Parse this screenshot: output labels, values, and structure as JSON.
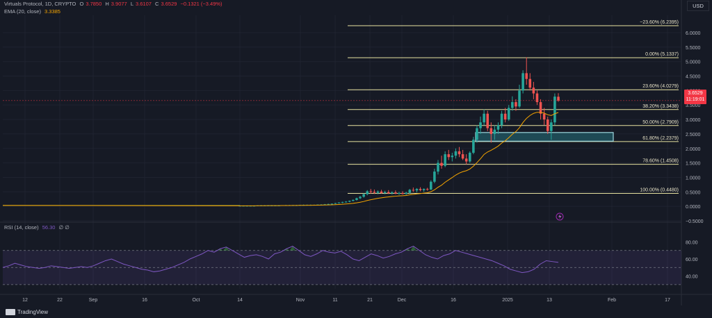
{
  "header": {
    "symbol": "Virtuals Protocol, 1D, CRYPTO",
    "o_label": "O",
    "o_val": "3.7850",
    "h_label": "H",
    "h_val": "3.9077",
    "l_label": "L",
    "l_val": "3.6107",
    "c_label": "C",
    "c_val": "3.6529",
    "change": "−0.1321 (−3.49%)",
    "ema_label": "EMA (20, close)",
    "ema_val": "3.3385",
    "rsi_label": "RSI (14, close)",
    "rsi_val": "56.30",
    "rsi_extra": "∅ ∅"
  },
  "currency": "USD",
  "price_tag": {
    "price": "3.6529",
    "countdown": "11:19:01"
  },
  "brand": "TradingView",
  "colors": {
    "up": "#26a69a",
    "down": "#ef5350",
    "ema": "#f7a600",
    "fib": "#e8e3a0",
    "rsi": "#7e57c2",
    "zone": "#9fd8e0",
    "grid": "#1f2330"
  },
  "chart_data": [
    {
      "type": "candlestick",
      "price_axis": [
        "6.0000",
        "5.5000",
        "5.0000",
        "4.5000",
        "4.0000",
        "3.5000",
        "3.0000",
        "2.5000",
        "2.0000",
        "1.5000",
        "1.0000",
        "0.5000",
        "0.0000",
        "−0.5000"
      ],
      "ylim": [
        -0.5,
        6.6
      ],
      "time_axis": [
        "12",
        "22",
        "Sep",
        "16",
        "Oct",
        "14",
        "Nov",
        "11",
        "21",
        "Dec",
        "16",
        "2025",
        "13",
        "Feb",
        "17"
      ],
      "fib_levels": [
        {
          "label": "−23.60% (6.2395)",
          "value": 6.2395
        },
        {
          "label": "0.00% (5.1337)",
          "value": 5.1337
        },
        {
          "label": "23.60% (4.0279)",
          "value": 4.0279
        },
        {
          "label": "38.20% (3.3438)",
          "value": 3.3438
        },
        {
          "label": "50.00% (2.7909)",
          "value": 2.7909
        },
        {
          "label": "61.80% (2.2379)",
          "value": 2.2379
        },
        {
          "label": "78.60% (1.4508)",
          "value": 1.4508
        },
        {
          "label": "100.00% (0.4480)",
          "value": 0.448
        }
      ],
      "zone": {
        "top": 2.55,
        "bottom": 2.25
      },
      "candles": [
        [
          0.02,
          0.03,
          0.01,
          0.02
        ],
        [
          0.02,
          0.03,
          0.01,
          0.02
        ],
        [
          0.02,
          0.03,
          0.01,
          0.02
        ],
        [
          0.02,
          0.03,
          0.01,
          0.02
        ],
        [
          0.02,
          0.03,
          0.01,
          0.02
        ],
        [
          0.02,
          0.03,
          0.01,
          0.03
        ],
        [
          0.03,
          0.04,
          0.02,
          0.03
        ],
        [
          0.03,
          0.04,
          0.02,
          0.03
        ],
        [
          0.03,
          0.04,
          0.02,
          0.03
        ],
        [
          0.03,
          0.04,
          0.02,
          0.03
        ],
        [
          0.03,
          0.04,
          0.02,
          0.03
        ],
        [
          0.03,
          0.04,
          0.02,
          0.03
        ],
        [
          0.03,
          0.04,
          0.02,
          0.04
        ],
        [
          0.04,
          0.05,
          0.03,
          0.04
        ],
        [
          0.04,
          0.05,
          0.03,
          0.04
        ],
        [
          0.04,
          0.05,
          0.03,
          0.04
        ],
        [
          0.04,
          0.05,
          0.03,
          0.04
        ],
        [
          0.04,
          0.05,
          0.03,
          0.05
        ],
        [
          0.05,
          0.06,
          0.04,
          0.05
        ],
        [
          0.05,
          0.06,
          0.04,
          0.05
        ],
        [
          0.05,
          0.06,
          0.04,
          0.05
        ],
        [
          0.05,
          0.06,
          0.04,
          0.05
        ],
        [
          0.05,
          0.06,
          0.04,
          0.06
        ],
        [
          0.06,
          0.07,
          0.05,
          0.06
        ],
        [
          0.06,
          0.08,
          0.05,
          0.07
        ],
        [
          0.07,
          0.09,
          0.06,
          0.08
        ],
        [
          0.08,
          0.1,
          0.07,
          0.09
        ],
        [
          0.09,
          0.12,
          0.08,
          0.11
        ],
        [
          0.11,
          0.14,
          0.1,
          0.13
        ],
        [
          0.13,
          0.16,
          0.11,
          0.15
        ],
        [
          0.15,
          0.18,
          0.13,
          0.16
        ],
        [
          0.16,
          0.2,
          0.14,
          0.19
        ],
        [
          0.19,
          0.24,
          0.17,
          0.22
        ],
        [
          0.22,
          0.3,
          0.2,
          0.28
        ],
        [
          0.28,
          0.36,
          0.25,
          0.33
        ],
        [
          0.33,
          0.45,
          0.3,
          0.42
        ],
        [
          0.42,
          0.56,
          0.38,
          0.52
        ],
        [
          0.52,
          0.6,
          0.44,
          0.5
        ],
        [
          0.5,
          0.58,
          0.43,
          0.47
        ],
        [
          0.47,
          0.55,
          0.42,
          0.51
        ],
        [
          0.51,
          0.57,
          0.44,
          0.46
        ],
        [
          0.46,
          0.54,
          0.42,
          0.49
        ],
        [
          0.49,
          0.56,
          0.43,
          0.45
        ],
        [
          0.45,
          0.52,
          0.41,
          0.48
        ],
        [
          0.48,
          0.55,
          0.42,
          0.44
        ],
        [
          0.44,
          0.5,
          0.4,
          0.46
        ],
        [
          0.46,
          0.52,
          0.41,
          0.43
        ],
        [
          0.43,
          0.5,
          0.4,
          0.47
        ],
        [
          0.47,
          0.6,
          0.44,
          0.57
        ],
        [
          0.57,
          0.65,
          0.5,
          0.55
        ],
        [
          0.55,
          0.63,
          0.48,
          0.6
        ],
        [
          0.6,
          0.66,
          0.52,
          0.56
        ],
        [
          0.56,
          0.62,
          0.5,
          0.6
        ],
        [
          0.6,
          0.64,
          0.54,
          0.58
        ],
        [
          0.58,
          0.9,
          0.56,
          0.85
        ],
        [
          0.85,
          1.3,
          0.8,
          1.2
        ],
        [
          1.2,
          1.6,
          1.1,
          1.5
        ],
        [
          1.5,
          1.75,
          1.3,
          1.4
        ],
        [
          1.4,
          1.9,
          1.35,
          1.8
        ],
        [
          1.8,
          1.95,
          1.6,
          1.7
        ],
        [
          1.7,
          1.85,
          1.55,
          1.75
        ],
        [
          1.75,
          2.0,
          1.65,
          1.9
        ],
        [
          1.9,
          2.05,
          1.7,
          1.8
        ],
        [
          1.8,
          1.95,
          1.6,
          1.65
        ],
        [
          1.65,
          1.8,
          1.45,
          1.55
        ],
        [
          1.55,
          1.9,
          1.5,
          1.85
        ],
        [
          1.85,
          2.4,
          1.8,
          2.3
        ],
        [
          2.3,
          2.8,
          2.2,
          2.7
        ],
        [
          2.7,
          3.1,
          2.5,
          2.9
        ],
        [
          2.9,
          3.35,
          2.8,
          3.2
        ],
        [
          3.2,
          3.3,
          2.6,
          2.7
        ],
        [
          2.7,
          2.9,
          2.2,
          2.5
        ],
        [
          2.5,
          2.8,
          2.3,
          2.65
        ],
        [
          2.65,
          2.9,
          2.5,
          2.8
        ],
        [
          2.8,
          3.3,
          2.7,
          3.2
        ],
        [
          3.2,
          3.4,
          2.9,
          3.0
        ],
        [
          3.0,
          3.5,
          2.95,
          3.4
        ],
        [
          3.4,
          3.8,
          3.3,
          3.6
        ],
        [
          3.6,
          3.7,
          3.3,
          3.45
        ],
        [
          3.45,
          4.2,
          3.4,
          4.0
        ],
        [
          4.0,
          4.7,
          3.9,
          4.6
        ],
        [
          4.6,
          5.15,
          4.2,
          4.4
        ],
        [
          4.4,
          4.6,
          4.0,
          4.1
        ],
        [
          4.1,
          4.3,
          3.7,
          3.9
        ],
        [
          3.9,
          4.0,
          3.5,
          3.6
        ],
        [
          3.6,
          3.7,
          3.0,
          3.2
        ],
        [
          3.2,
          3.4,
          2.8,
          3.0
        ],
        [
          3.0,
          3.1,
          2.5,
          2.6
        ],
        [
          2.6,
          3.0,
          2.3,
          2.9
        ],
        [
          2.9,
          3.9,
          2.8,
          3.79
        ],
        [
          3.785,
          3.9077,
          3.6107,
          3.6529
        ]
      ]
    },
    {
      "type": "line",
      "name": "RSI (14, close)",
      "levels": [
        "80.00",
        "60.00",
        "40.00"
      ],
      "ylim": [
        25,
        95
      ],
      "overbought": 70,
      "oversold": 30,
      "middle": 50,
      "values": [
        50,
        52,
        55,
        53,
        51,
        50,
        49,
        50,
        52,
        51,
        50,
        49,
        50,
        51,
        50,
        52,
        55,
        58,
        60,
        57,
        54,
        52,
        50,
        48,
        47,
        45,
        46,
        48,
        50,
        53,
        56,
        60,
        63,
        66,
        70,
        68,
        72,
        74,
        70,
        66,
        62,
        64,
        65,
        63,
        60,
        66,
        68,
        72,
        75,
        70,
        65,
        63,
        66,
        70,
        68,
        67,
        69,
        65,
        60,
        58,
        62,
        66,
        64,
        61,
        63,
        66,
        68,
        72,
        75,
        70,
        65,
        62,
        60,
        64,
        66,
        70,
        68,
        66,
        64,
        62,
        60,
        58,
        55,
        52,
        48,
        46,
        44,
        45,
        48,
        54,
        58,
        57,
        56
      ]
    }
  ]
}
